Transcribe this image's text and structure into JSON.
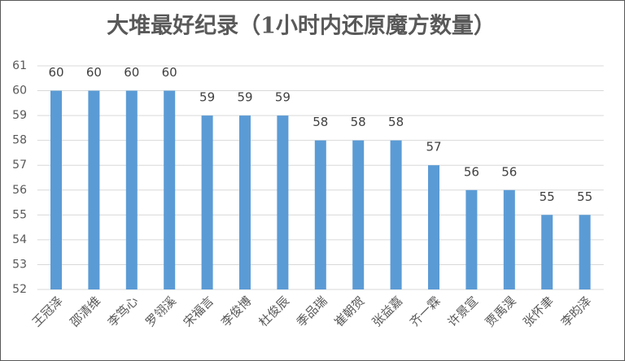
{
  "chart_data": {
    "type": "bar",
    "title": "大堆最好纪录（1小时内还原魔方数量）",
    "categories": [
      "王冠泽",
      "邵清维",
      "李笃心",
      "罗翎溪",
      "宋福言",
      "李俊博",
      "杜俊辰",
      "季品瑞",
      "崔朝贺",
      "张益嘉",
      "齐一霖",
      "许景宣",
      "贾禹淏",
      "张怀聿",
      "李昀泽"
    ],
    "values": [
      60,
      60,
      60,
      60,
      59,
      59,
      59,
      58,
      58,
      58,
      57,
      56,
      56,
      55,
      55
    ],
    "color": "#5b9bd5",
    "ylim": [
      52,
      61
    ],
    "yticks": [
      52,
      53,
      54,
      55,
      56,
      57,
      58,
      59,
      60,
      61
    ],
    "grid": true
  }
}
